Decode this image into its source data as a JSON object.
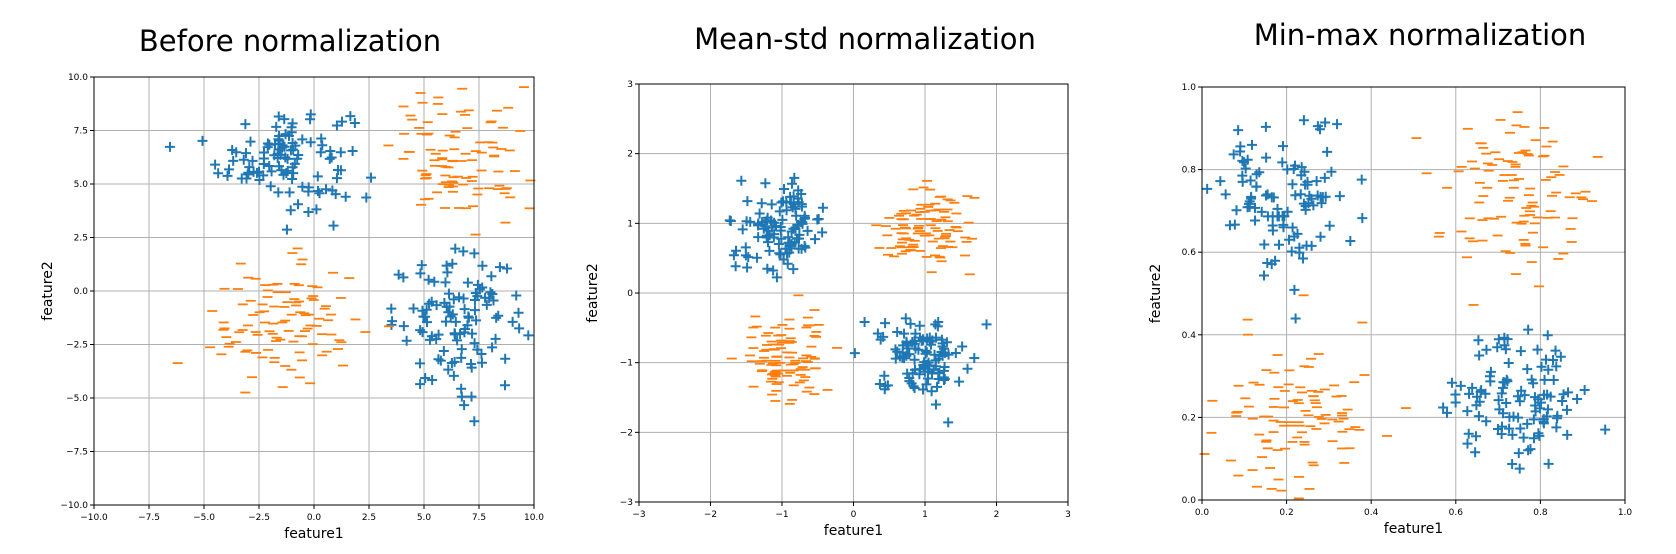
{
  "colors": {
    "series_plus": "#1f77b4",
    "series_minus": "#ff7f0e",
    "grid": "#b0b0b0",
    "axis": "#000000"
  },
  "chart_data": [
    {
      "type": "scatter",
      "title": "Before normalization",
      "xlabel": "feature1",
      "ylabel": "feature2",
      "xlim": [
        -10,
        10
      ],
      "ylim": [
        -10,
        10
      ],
      "xticks": [
        -10,
        -7.5,
        -5,
        -2.5,
        0,
        2.5,
        5,
        7.5,
        10
      ],
      "yticks": [
        -10,
        -7.5,
        -5,
        -2.5,
        0,
        2.5,
        5,
        7.5,
        10
      ],
      "xtick_labels": [
        "−10.0",
        "−7.5",
        "−5.0",
        "−2.5",
        "0.0",
        "2.5",
        "5.0",
        "7.5",
        "10.0"
      ],
      "ytick_labels": [
        "−10.0",
        "−7.5",
        "−5.0",
        "−2.5",
        "0.0",
        "2.5",
        "5.0",
        "7.5",
        "10.0"
      ],
      "grid": true,
      "series": [
        {
          "marker": "+",
          "clusters": [
            {
              "center": [
                -1.3,
                6.3
              ],
              "spread": [
                1.5,
                1.2
              ],
              "n": 110
            },
            {
              "center": [
                6.6,
                -1.5
              ],
              "spread": [
                1.5,
                1.5
              ],
              "n": 110
            }
          ]
        },
        {
          "marker": "-",
          "clusters": [
            {
              "center": [
                6.8,
                6.3
              ],
              "spread": [
                1.6,
                1.5
              ],
              "n": 110
            },
            {
              "center": [
                -1.3,
                -1.6
              ],
              "spread": [
                1.7,
                1.4
              ],
              "n": 110
            }
          ]
        }
      ]
    },
    {
      "type": "scatter",
      "title": "Mean-std normalization",
      "xlabel": "feature1",
      "ylabel": "feature2",
      "xlim": [
        -3,
        3
      ],
      "ylim": [
        -3,
        3
      ],
      "xticks": [
        -3,
        -2,
        -1,
        0,
        1,
        2,
        3
      ],
      "yticks": [
        -3,
        -2,
        -1,
        0,
        1,
        2,
        3
      ],
      "xtick_labels": [
        "−3",
        "−2",
        "−1",
        "0",
        "1",
        "2",
        "3"
      ],
      "ytick_labels": [
        "−3",
        "−2",
        "−1",
        "0",
        "1",
        "2",
        "3"
      ],
      "grid": true,
      "series": [
        {
          "marker": "+",
          "clusters": [
            {
              "center": [
                -1.0,
                0.95
              ],
              "spread": [
                0.3,
                0.3
              ],
              "n": 110
            },
            {
              "center": [
                0.95,
                -0.9
              ],
              "spread": [
                0.3,
                0.27
              ],
              "n": 110
            }
          ]
        },
        {
          "marker": "-",
          "clusters": [
            {
              "center": [
                0.97,
                0.9
              ],
              "spread": [
                0.33,
                0.3
              ],
              "n": 110
            },
            {
              "center": [
                -0.95,
                -0.95
              ],
              "spread": [
                0.3,
                0.28
              ],
              "n": 110
            }
          ]
        }
      ]
    },
    {
      "type": "scatter",
      "title": "Min-max normalization",
      "xlabel": "feature1",
      "ylabel": "feature2",
      "xlim": [
        0,
        1
      ],
      "ylim": [
        0,
        1
      ],
      "xticks": [
        0,
        0.2,
        0.4,
        0.6,
        0.8,
        1.0
      ],
      "yticks": [
        0,
        0.2,
        0.4,
        0.6,
        0.8,
        1.0
      ],
      "xtick_labels": [
        "0.0",
        "0.2",
        "0.4",
        "0.6",
        "0.8",
        "1.0"
      ],
      "ytick_labels": [
        "0.0",
        "0.2",
        "0.4",
        "0.6",
        "0.8",
        "1.0"
      ],
      "grid": true,
      "series": [
        {
          "marker": "+",
          "clusters": [
            {
              "center": [
                0.2,
                0.73
              ],
              "spread": [
                0.08,
                0.09
              ],
              "n": 110
            },
            {
              "center": [
                0.75,
                0.25
              ],
              "spread": [
                0.08,
                0.08
              ],
              "n": 110
            }
          ]
        },
        {
          "marker": "-",
          "clusters": [
            {
              "center": [
                0.75,
                0.74
              ],
              "spread": [
                0.09,
                0.1
              ],
              "n": 110
            },
            {
              "center": [
                0.22,
                0.21
              ],
              "spread": [
                0.09,
                0.09
              ],
              "n": 110
            }
          ]
        }
      ]
    }
  ]
}
